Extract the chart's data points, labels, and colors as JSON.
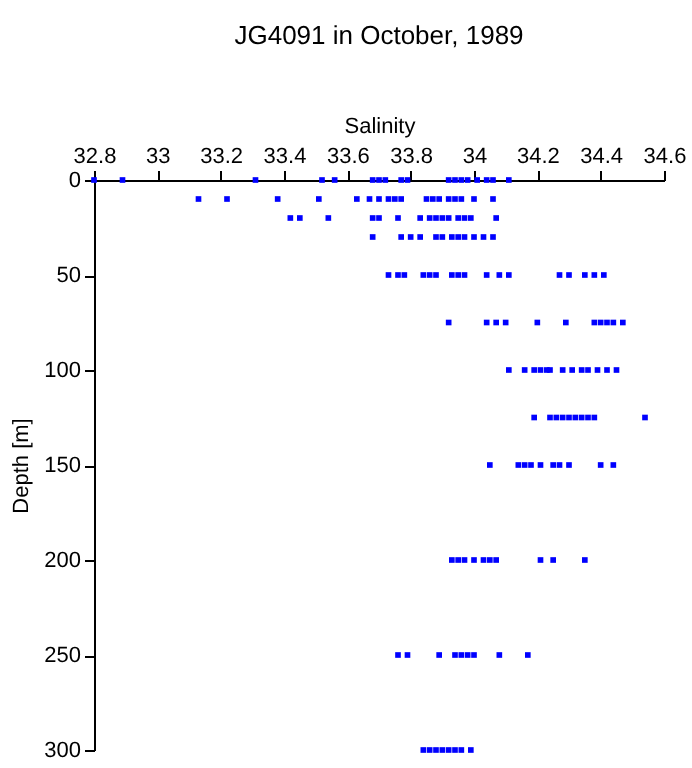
{
  "chart_data": {
    "type": "scatter",
    "title": "JG4091 in October, 1989",
    "xlabel": "Salinity",
    "ylabel": "Depth [m]",
    "xlim": [
      32.8,
      34.6
    ],
    "xticks": [
      32.8,
      33,
      33.2,
      33.4,
      33.6,
      33.8,
      34,
      34.2,
      34.4,
      34.6
    ],
    "ylim": [
      300,
      0
    ],
    "yticks": [
      0,
      50,
      100,
      150,
      200,
      250,
      300
    ],
    "grid": false,
    "legend": false,
    "marker": "square",
    "series": [
      {
        "color": "#0000ff",
        "x": [
          32.8,
          32.89,
          33.31,
          33.52,
          33.56,
          33.68,
          33.7,
          33.72,
          33.77,
          33.79,
          33.92,
          33.94,
          33.96,
          33.98,
          34.01,
          34.04,
          34.06,
          34.11,
          33.13,
          33.22,
          33.38,
          33.51,
          33.63,
          33.67,
          33.7,
          33.73,
          33.75,
          33.77,
          33.85,
          33.87,
          33.89,
          33.92,
          33.94,
          33.96,
          34.0,
          34.06,
          33.42,
          33.45,
          33.54,
          33.68,
          33.7,
          33.76,
          33.83,
          33.86,
          33.88,
          33.9,
          33.92,
          33.95,
          33.97,
          33.99,
          34.07,
          33.68,
          33.77,
          33.8,
          33.83,
          33.88,
          33.9,
          33.93,
          33.95,
          33.97,
          34.0,
          34.03,
          34.06,
          33.73,
          33.76,
          33.78,
          33.84,
          33.86,
          33.88,
          33.93,
          33.95,
          33.97,
          34.04,
          34.08,
          34.11,
          34.27,
          34.3,
          34.35,
          34.38,
          34.41,
          33.92,
          34.04,
          34.07,
          34.1,
          34.2,
          34.29,
          34.38,
          34.4,
          34.42,
          34.44,
          34.47,
          34.11,
          34.16,
          34.19,
          34.21,
          34.23,
          34.24,
          34.28,
          34.31,
          34.34,
          34.36,
          34.39,
          34.42,
          34.45,
          34.19,
          34.24,
          34.26,
          34.28,
          34.3,
          34.32,
          34.34,
          34.36,
          34.38,
          34.54,
          34.05,
          34.14,
          34.16,
          34.18,
          34.21,
          34.25,
          34.27,
          34.3,
          34.4,
          34.44,
          33.93,
          33.95,
          33.97,
          34.0,
          34.03,
          34.05,
          34.07,
          34.21,
          34.25,
          34.35,
          33.76,
          33.79,
          33.89,
          33.94,
          33.96,
          33.98,
          34.0,
          34.08,
          34.17,
          33.84,
          33.86,
          33.88,
          33.9,
          33.92,
          33.94,
          33.96,
          33.99
        ],
        "values": [
          0,
          0,
          0,
          0,
          0,
          0,
          0,
          0,
          0,
          0,
          0,
          0,
          0,
          0,
          0,
          0,
          0,
          0,
          10,
          10,
          10,
          10,
          10,
          10,
          10,
          10,
          10,
          10,
          10,
          10,
          10,
          10,
          10,
          10,
          10,
          10,
          20,
          20,
          20,
          20,
          20,
          20,
          20,
          20,
          20,
          20,
          20,
          20,
          20,
          20,
          20,
          30,
          30,
          30,
          30,
          30,
          30,
          30,
          30,
          30,
          30,
          30,
          30,
          50,
          50,
          50,
          50,
          50,
          50,
          50,
          50,
          50,
          50,
          50,
          50,
          50,
          50,
          50,
          50,
          50,
          75,
          75,
          75,
          75,
          75,
          75,
          75,
          75,
          75,
          75,
          75,
          100,
          100,
          100,
          100,
          100,
          100,
          100,
          100,
          100,
          100,
          100,
          100,
          100,
          125,
          125,
          125,
          125,
          125,
          125,
          125,
          125,
          125,
          125,
          150,
          150,
          150,
          150,
          150,
          150,
          150,
          150,
          150,
          150,
          200,
          200,
          200,
          200,
          200,
          200,
          200,
          200,
          200,
          200,
          250,
          250,
          250,
          250,
          250,
          250,
          250,
          250,
          250,
          300,
          300,
          300,
          300,
          300,
          300,
          300,
          300
        ]
      }
    ]
  }
}
